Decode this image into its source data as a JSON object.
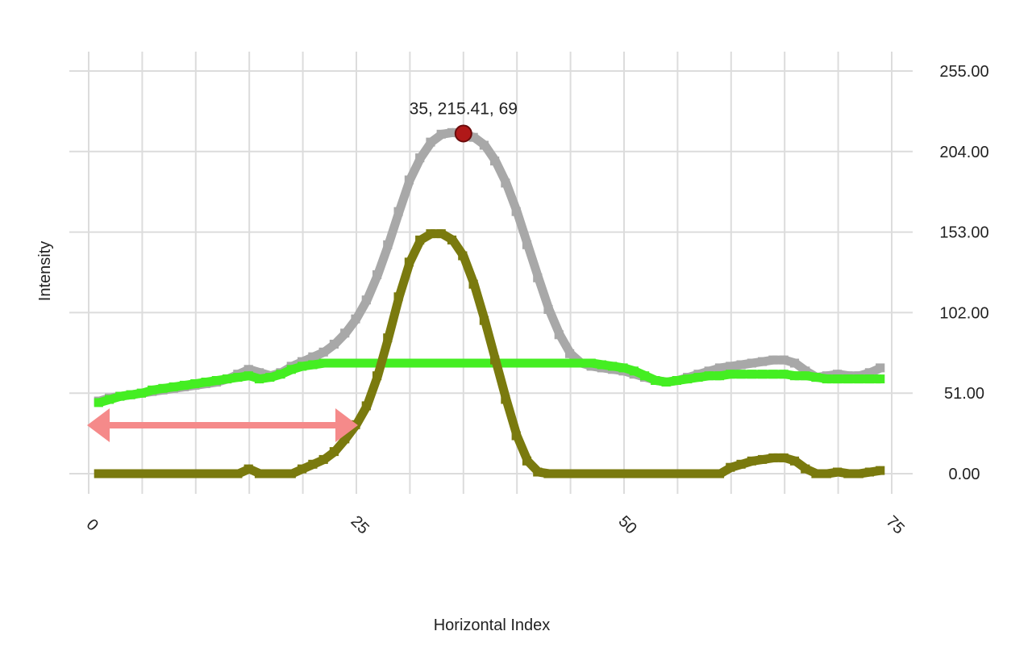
{
  "chart_data": {
    "type": "line",
    "xlabel": "Horizontal Index",
    "ylabel": "Intensity",
    "x_ticks": [
      "0",
      "25",
      "50",
      "75"
    ],
    "y_ticks": [
      "0.00",
      "51.00",
      "102.00",
      "153.00",
      "204.00",
      "255.00"
    ],
    "xlim": [
      0,
      75
    ],
    "ylim": [
      0,
      255
    ],
    "grid": true,
    "y_axis_side": "right",
    "x": [
      1,
      2,
      3,
      4,
      5,
      6,
      7,
      8,
      9,
      10,
      11,
      12,
      13,
      14,
      15,
      16,
      17,
      18,
      19,
      20,
      21,
      22,
      23,
      24,
      25,
      26,
      27,
      28,
      29,
      30,
      31,
      32,
      33,
      34,
      35,
      36,
      37,
      38,
      39,
      40,
      41,
      42,
      43,
      44,
      45,
      46,
      47,
      48,
      49,
      50,
      51,
      52,
      53,
      54,
      55,
      56,
      57,
      58,
      59,
      60,
      61,
      62,
      63,
      64,
      65,
      66,
      67,
      68,
      69,
      70,
      71,
      72,
      73,
      74
    ],
    "series": [
      {
        "color": "#a8a8a8",
        "values": [
          46,
          48,
          49,
          50,
          51,
          52,
          53,
          54,
          55,
          56,
          57,
          58,
          60,
          63,
          66,
          64,
          62,
          64,
          68,
          71,
          74,
          77,
          82,
          89,
          98,
          110,
          126,
          145,
          166,
          186,
          200,
          210,
          215,
          216,
          215,
          213,
          208,
          198,
          184,
          166,
          145,
          124,
          104,
          88,
          76,
          70,
          68,
          67,
          66,
          65,
          63,
          61,
          59,
          58,
          59,
          61,
          63,
          65,
          67,
          68,
          69,
          70,
          71,
          72,
          72,
          70,
          65,
          61,
          62,
          63,
          62,
          62,
          64,
          67
        ]
      },
      {
        "color": "#44ee22",
        "values": [
          45,
          47,
          49,
          50,
          51,
          53,
          54,
          55,
          56,
          57,
          58,
          59,
          60,
          61,
          62,
          60,
          61,
          63,
          66,
          68,
          69,
          70,
          70,
          70,
          70,
          70,
          70,
          70,
          70,
          70,
          70,
          70,
          70,
          70,
          70,
          70,
          70,
          70,
          70,
          70,
          70,
          70,
          70,
          70,
          70,
          70,
          70,
          69,
          68,
          67,
          65,
          62,
          59,
          58,
          59,
          60,
          61,
          62,
          62,
          63,
          63,
          63,
          63,
          63,
          63,
          62,
          62,
          61,
          60,
          60,
          60,
          60,
          60,
          60
        ]
      },
      {
        "color": "#7a7a0e",
        "values": [
          0,
          0,
          0,
          0,
          0,
          0,
          0,
          0,
          0,
          0,
          0,
          0,
          0,
          0,
          3,
          0,
          0,
          0,
          0,
          3,
          6,
          9,
          14,
          22,
          31,
          43,
          62,
          86,
          112,
          134,
          148,
          152,
          152,
          148,
          138,
          120,
          97,
          72,
          47,
          24,
          8,
          1,
          0,
          0,
          0,
          0,
          0,
          0,
          0,
          0,
          0,
          0,
          0,
          0,
          0,
          0,
          0,
          0,
          0,
          4,
          6,
          8,
          9,
          10,
          10,
          8,
          3,
          0,
          0,
          1,
          0,
          0,
          1,
          2
        ]
      }
    ],
    "annotations": [
      {
        "text": "35, 215.41, 69",
        "x": 35,
        "y": 215.41
      }
    ]
  }
}
